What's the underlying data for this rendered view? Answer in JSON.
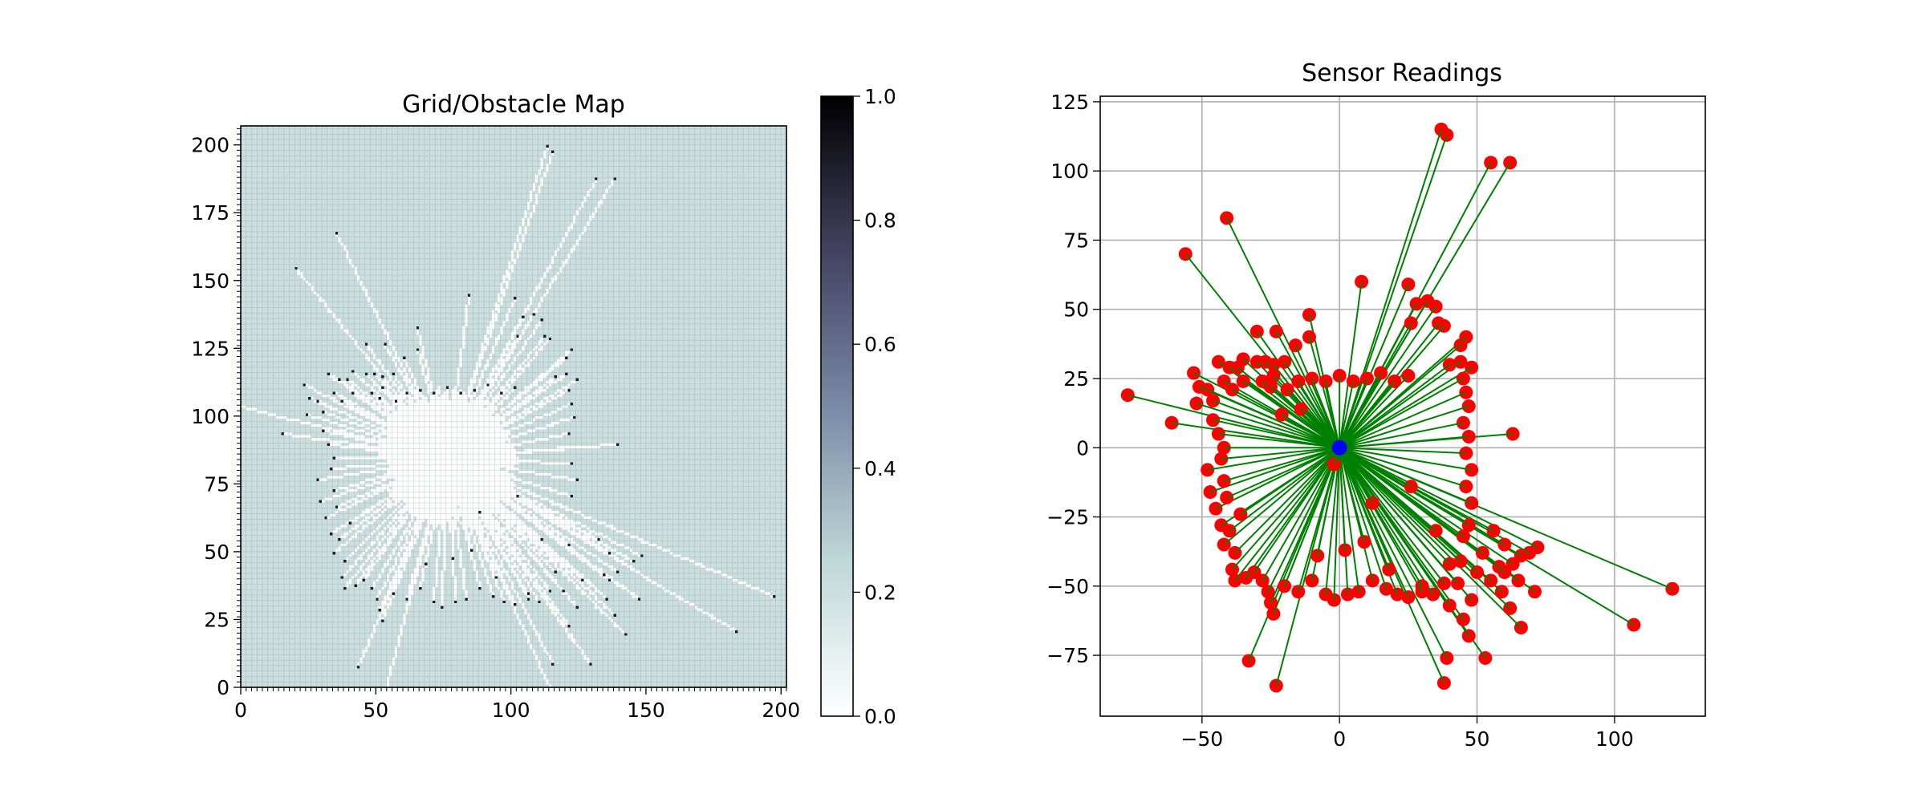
{
  "chart_data": [
    {
      "type": "heatmap",
      "title": "Grid/Obstacle Map",
      "xlim": [
        0,
        202
      ],
      "ylim": [
        0,
        207
      ],
      "xticks": [
        0,
        50,
        100,
        150,
        200
      ],
      "yticks": [
        0,
        25,
        50,
        75,
        100,
        125,
        150,
        175,
        200
      ],
      "grid_shape": [
        207,
        202
      ],
      "origin": "lower",
      "colormap": "bone_r",
      "vmin": 0.0,
      "vmax": 1.0,
      "unknown_value": 0.2,
      "free_value": 0.0,
      "occupied_value": 0.9,
      "robot_cell": [
        76,
        84
      ],
      "free_blob_radius_cells": 22,
      "colorbar_ticks": [
        "0.0",
        "0.2",
        "0.4",
        "0.6",
        "0.8",
        "1.0"
      ],
      "colors": {
        "unknown": "#d2d6de",
        "free": "#ffffff",
        "grid_line": "#8f96a0"
      }
    },
    {
      "type": "scatter",
      "title": "Sensor Readings",
      "xlim": [
        -87,
        133
      ],
      "ylim": [
        -97,
        127
      ],
      "xticks": [
        -50,
        0,
        50,
        100
      ],
      "yticks": [
        -75,
        -50,
        -25,
        0,
        25,
        50,
        75,
        100,
        125
      ],
      "grid": true,
      "robot": {
        "x": 0,
        "y": 0
      },
      "colors": {
        "points": "#ff0000",
        "rays": "#008000",
        "robot": "#0000ff",
        "grid": "#b0b0b0"
      },
      "points": [
        [
          37,
          115
        ],
        [
          39,
          113
        ],
        [
          55,
          103
        ],
        [
          62,
          103
        ],
        [
          -41,
          83
        ],
        [
          -56,
          70
        ],
        [
          8,
          60
        ],
        [
          25,
          59
        ],
        [
          28,
          52
        ],
        [
          32,
          53
        ],
        [
          35,
          51
        ],
        [
          36,
          45
        ],
        [
          38,
          44
        ],
        [
          26,
          45
        ],
        [
          -11,
          48
        ],
        [
          -23,
          42
        ],
        [
          -11,
          40
        ],
        [
          -16,
          37
        ],
        [
          -20,
          31
        ],
        [
          -24,
          30
        ],
        [
          -27,
          31
        ],
        [
          -30,
          31
        ],
        [
          -35,
          32
        ],
        [
          -37,
          29
        ],
        [
          -40,
          29
        ],
        [
          -44,
          31
        ],
        [
          -53,
          27
        ],
        [
          -51,
          22
        ],
        [
          -48,
          21
        ],
        [
          -42,
          24
        ],
        [
          -39,
          21
        ],
        [
          -35,
          24
        ],
        [
          -28,
          24
        ],
        [
          -24,
          26
        ],
        [
          -19,
          21
        ],
        [
          -15,
          24
        ],
        [
          -10,
          25
        ],
        [
          -5,
          24
        ],
        [
          0,
          26
        ],
        [
          5,
          24
        ],
        [
          10,
          25
        ],
        [
          15,
          27
        ],
        [
          20,
          24
        ],
        [
          25,
          26
        ],
        [
          -77,
          19
        ],
        [
          -61,
          9
        ],
        [
          -52,
          16
        ],
        [
          -46,
          17
        ],
        [
          -44,
          5
        ],
        [
          -42,
          0
        ],
        [
          -43,
          -4
        ],
        [
          -42,
          -12
        ],
        [
          -41,
          -18
        ],
        [
          -45,
          -22
        ],
        [
          -43,
          -28
        ],
        [
          -40,
          -30
        ],
        [
          -42,
          -35
        ],
        [
          -38,
          -38
        ],
        [
          -39,
          -44
        ],
        [
          -38,
          -48
        ],
        [
          -34,
          -47
        ],
        [
          -31,
          -45
        ],
        [
          -28,
          -48
        ],
        [
          -26,
          -52
        ],
        [
          -25,
          -56
        ],
        [
          -24,
          -60
        ],
        [
          -20,
          -50
        ],
        [
          -15,
          -52
        ],
        [
          -10,
          -48
        ],
        [
          -5,
          -53
        ],
        [
          -2,
          -55
        ],
        [
          3,
          -53
        ],
        [
          7,
          -52
        ],
        [
          12,
          -48
        ],
        [
          17,
          -51
        ],
        [
          21,
          -53
        ],
        [
          25,
          -54
        ],
        [
          30,
          -52
        ],
        [
          34,
          -53
        ],
        [
          38,
          -49
        ],
        [
          40,
          -42
        ],
        [
          44,
          -41
        ],
        [
          45,
          -32
        ],
        [
          47,
          -28
        ],
        [
          48,
          -20
        ],
        [
          46,
          -14
        ],
        [
          48,
          -8
        ],
        [
          46,
          -2
        ],
        [
          47,
          4
        ],
        [
          45,
          9
        ],
        [
          47,
          15
        ],
        [
          46,
          20
        ],
        [
          45,
          25
        ],
        [
          48,
          29
        ],
        [
          44,
          31
        ],
        [
          40,
          30
        ],
        [
          44,
          37
        ],
        [
          46,
          40
        ],
        [
          -30,
          42
        ],
        [
          -25,
          22
        ],
        [
          -21,
          12
        ],
        [
          -46,
          10
        ],
        [
          -48,
          -8
        ],
        [
          -47,
          -16
        ],
        [
          63,
          5
        ],
        [
          48,
          -55
        ],
        [
          40,
          -57
        ],
        [
          45,
          -62
        ],
        [
          47,
          -68
        ],
        [
          53,
          -76
        ],
        [
          39,
          -76
        ],
        [
          38,
          -85
        ],
        [
          -23,
          -86
        ],
        [
          -33,
          -77
        ],
        [
          55,
          -48
        ],
        [
          60,
          -45
        ],
        [
          63,
          -42
        ],
        [
          66,
          -39
        ],
        [
          69,
          -38
        ],
        [
          72,
          -36
        ],
        [
          65,
          -48
        ],
        [
          59,
          -52
        ],
        [
          62,
          -58
        ],
        [
          66,
          -65
        ],
        [
          71,
          -52
        ],
        [
          107,
          -64
        ],
        [
          121,
          -51
        ],
        [
          50,
          -45
        ],
        [
          52,
          -38
        ],
        [
          56,
          -30
        ],
        [
          60,
          -35
        ],
        [
          58,
          -43
        ],
        [
          -36,
          -24
        ],
        [
          -8,
          -39
        ],
        [
          2,
          -37
        ],
        [
          9,
          -34
        ],
        [
          35,
          -30
        ],
        [
          26,
          -14
        ],
        [
          30,
          -50
        ],
        [
          43,
          -49
        ],
        [
          18,
          -44
        ],
        [
          -14,
          14
        ],
        [
          12,
          -20
        ],
        [
          -2,
          -6
        ]
      ]
    }
  ]
}
